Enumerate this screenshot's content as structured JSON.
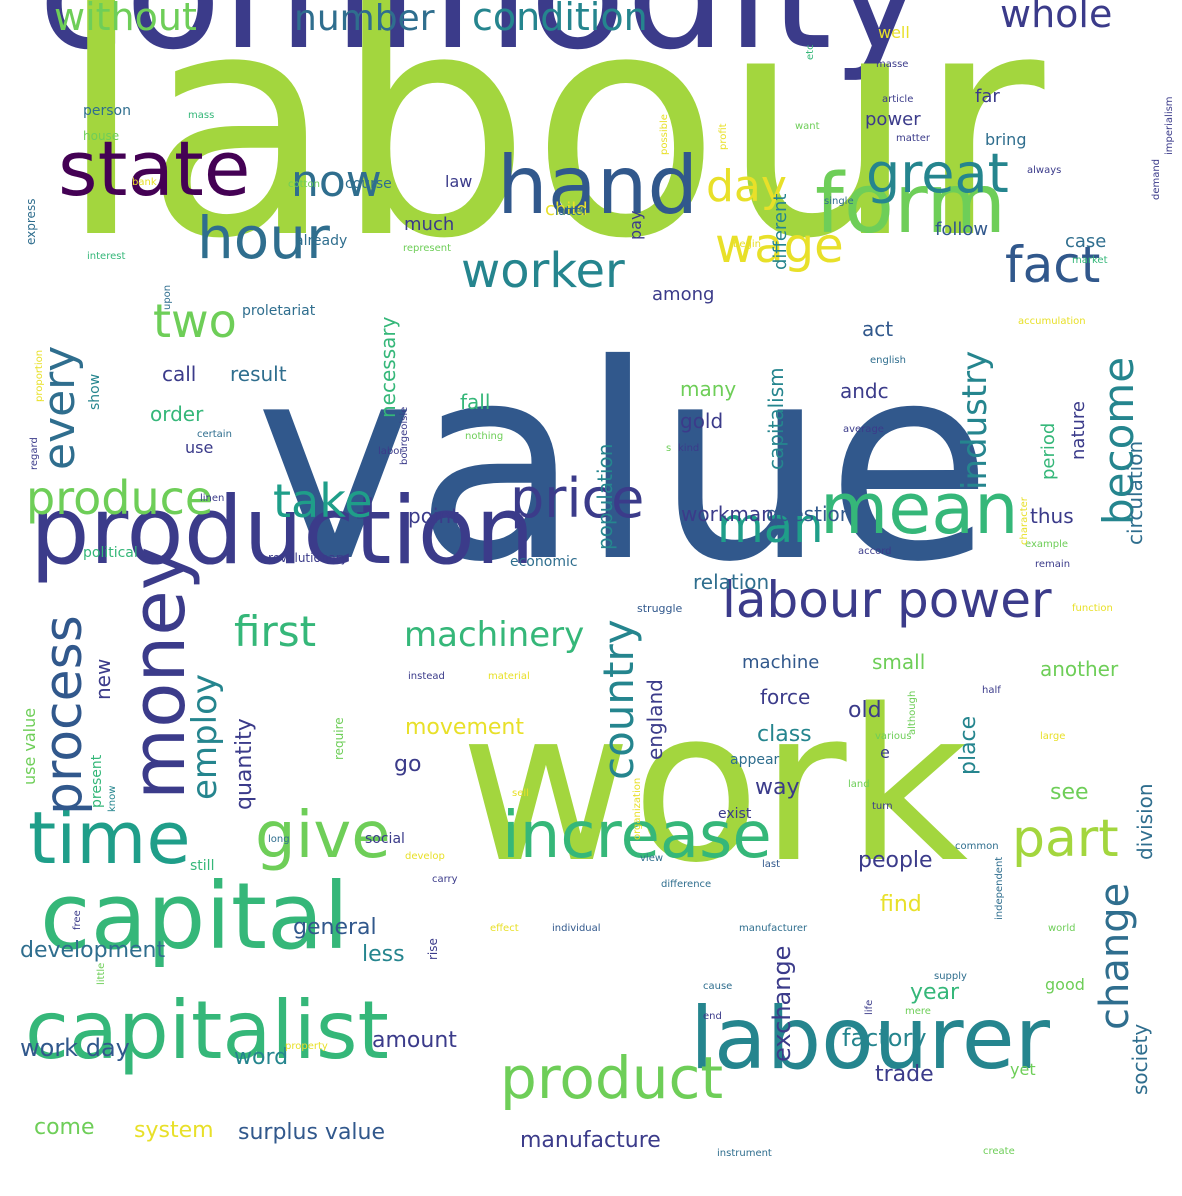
{
  "palette": {
    "deep_purple": "#440154",
    "indigo": "#3b3b8a",
    "blue": "#31588c",
    "steel": "#2f6e8e",
    "teal": "#25858e",
    "sea": "#1f9e89",
    "green": "#35b779",
    "lime": "#6ece58",
    "yellow_green": "#a3d63e",
    "yellow": "#e8e029"
  },
  "words": [
    {
      "text": "commodity",
      "color": "#3b3b8a",
      "weight": 100
    },
    {
      "text": "labour",
      "color": "#a3d63e",
      "weight": 96
    },
    {
      "text": "value",
      "color": "#31588c",
      "weight": 93
    },
    {
      "text": "work",
      "color": "#a3d63e",
      "weight": 88
    },
    {
      "text": "production",
      "color": "#3b3b8a",
      "weight": 60
    },
    {
      "text": "capital",
      "color": "#35b779",
      "weight": 58
    },
    {
      "text": "capitalist",
      "color": "#35b779",
      "weight": 52
    },
    {
      "text": "labourer",
      "color": "#25858e",
      "weight": 52
    },
    {
      "text": "state",
      "color": "#440154",
      "weight": 50
    },
    {
      "text": "hand",
      "color": "#31588c",
      "weight": 50
    },
    {
      "text": "form",
      "color": "#6ece58",
      "weight": 49
    },
    {
      "text": "mean",
      "color": "#35b779",
      "weight": 48
    },
    {
      "text": "time",
      "color": "#1f9e89",
      "weight": 47
    },
    {
      "text": "money",
      "color": "#3b3b8a",
      "weight": 45
    },
    {
      "text": "increase",
      "color": "#35b779",
      "weight": 44
    },
    {
      "text": "give",
      "color": "#6ece58",
      "weight": 44
    },
    {
      "text": "product",
      "color": "#6ece58",
      "weight": 42
    },
    {
      "text": "labour power",
      "color": "#3b3b8a",
      "weight": 40
    },
    {
      "text": "hour",
      "color": "#2f6e8e",
      "weight": 40
    },
    {
      "text": "great",
      "color": "#25858e",
      "weight": 36
    },
    {
      "text": "price",
      "color": "#3b3b8a",
      "weight": 36
    },
    {
      "text": "part",
      "color": "#a3d63e",
      "weight": 36
    },
    {
      "text": "fact",
      "color": "#31588c",
      "weight": 34
    },
    {
      "text": "process",
      "color": "#31588c",
      "weight": 34
    },
    {
      "text": "now",
      "color": "#2f6e8e",
      "weight": 32
    },
    {
      "text": "worker",
      "color": "#25858e",
      "weight": 32
    },
    {
      "text": "wage",
      "color": "#e8e029",
      "weight": 32
    },
    {
      "text": "man",
      "color": "#1f9e89",
      "weight": 32
    },
    {
      "text": "take",
      "color": "#1f9e89",
      "weight": 30
    },
    {
      "text": "produce",
      "color": "#6ece58",
      "weight": 30
    },
    {
      "text": "every",
      "color": "#2f6e8e",
      "weight": 30
    },
    {
      "text": "two",
      "color": "#6ece58",
      "weight": 30
    },
    {
      "text": "day",
      "color": "#e8e029",
      "weight": 30
    },
    {
      "text": "become",
      "color": "#25858e",
      "weight": 30
    },
    {
      "text": "change",
      "color": "#2f6e8e",
      "weight": 28
    },
    {
      "text": "first",
      "color": "#35b779",
      "weight": 28
    },
    {
      "text": "country",
      "color": "#25858e",
      "weight": 28
    },
    {
      "text": "whole",
      "color": "#3b3b8a",
      "weight": 28
    },
    {
      "text": "condition",
      "color": "#25858e",
      "weight": 28
    },
    {
      "text": "without",
      "color": "#6ece58",
      "weight": 28
    },
    {
      "text": "number",
      "color": "#2f6e8e",
      "weight": 26
    },
    {
      "text": "machinery",
      "color": "#35b779",
      "weight": 26
    },
    {
      "text": "industry",
      "color": "#25858e",
      "weight": 26
    },
    {
      "text": "employ",
      "color": "#25858e",
      "weight": 26
    },
    {
      "text": "surplus value",
      "color": "#31588c",
      "weight": 20
    },
    {
      "text": "manufacture",
      "color": "#3b3b8a",
      "weight": 20
    },
    {
      "text": "system",
      "color": "#e8e029",
      "weight": 20
    },
    {
      "text": "come",
      "color": "#6ece58",
      "weight": 20
    },
    {
      "text": "work day",
      "color": "#31588c",
      "weight": 20
    },
    {
      "text": "word",
      "color": "#25858e",
      "weight": 20
    },
    {
      "text": "amount",
      "color": "#3b3b8a",
      "weight": 20
    },
    {
      "text": "factory",
      "color": "#25858e",
      "weight": 22
    },
    {
      "text": "trade",
      "color": "#3b3b8a",
      "weight": 20
    },
    {
      "text": "year",
      "color": "#35b779",
      "weight": 20
    },
    {
      "text": "exchange",
      "color": "#3b3b8a",
      "weight": 20
    },
    {
      "text": "society",
      "color": "#2f6e8e",
      "weight": 18
    },
    {
      "text": "division",
      "color": "#2f6e8e",
      "weight": 18
    },
    {
      "text": "circulation",
      "color": "#2f6e8e",
      "weight": 18
    },
    {
      "text": "development",
      "color": "#2f6e8e",
      "weight": 18
    },
    {
      "text": "general",
      "color": "#31588c",
      "weight": 18
    },
    {
      "text": "less",
      "color": "#25858e",
      "weight": 18
    },
    {
      "text": "people",
      "color": "#3b3b8a",
      "weight": 18
    },
    {
      "text": "find",
      "color": "#e8e029",
      "weight": 18
    },
    {
      "text": "good",
      "color": "#6ece58",
      "weight": 14
    },
    {
      "text": "yet",
      "color": "#6ece58",
      "weight": 14
    },
    {
      "text": "movement",
      "color": "#e8e029",
      "weight": 18
    },
    {
      "text": "quantity",
      "color": "#3b3b8a",
      "weight": 18
    },
    {
      "text": "go",
      "color": "#3b3b8a",
      "weight": 18
    },
    {
      "text": "england",
      "color": "#3b3b8a",
      "weight": 18
    },
    {
      "text": "class",
      "color": "#25858e",
      "weight": 18
    },
    {
      "text": "way",
      "color": "#3b3b8a",
      "weight": 18
    },
    {
      "text": "place",
      "color": "#25858e",
      "weight": 18
    },
    {
      "text": "see",
      "color": "#6ece58",
      "weight": 18
    },
    {
      "text": "old",
      "color": "#3b3b8a",
      "weight": 18
    },
    {
      "text": "force",
      "color": "#3b3b8a",
      "weight": 16
    },
    {
      "text": "machine",
      "color": "#31588c",
      "weight": 16
    },
    {
      "text": "small",
      "color": "#6ece58",
      "weight": 16
    },
    {
      "text": "another",
      "color": "#6ece58",
      "weight": 16
    },
    {
      "text": "relation",
      "color": "#2f6e8e",
      "weight": 16
    },
    {
      "text": "new",
      "color": "#3b3b8a",
      "weight": 16
    },
    {
      "text": "workman",
      "color": "#3b3b8a",
      "weight": 16
    },
    {
      "text": "question",
      "color": "#31588c",
      "weight": 16
    },
    {
      "text": "thus",
      "color": "#3b3b8a",
      "weight": 16
    },
    {
      "text": "point",
      "color": "#3b3b8a",
      "weight": 16
    },
    {
      "text": "capitalism",
      "color": "#25858e",
      "weight": 16
    },
    {
      "text": "nature",
      "color": "#3b3b8a",
      "weight": 16
    },
    {
      "text": "period",
      "color": "#35b779",
      "weight": 16
    },
    {
      "text": "act",
      "color": "#31588c",
      "weight": 16
    },
    {
      "text": "andc",
      "color": "#3b3b8a",
      "weight": 16
    },
    {
      "text": "many",
      "color": "#6ece58",
      "weight": 16
    },
    {
      "text": "gold",
      "color": "#3b3b8a",
      "weight": 16
    },
    {
      "text": "fall",
      "color": "#35b779",
      "weight": 16
    },
    {
      "text": "population",
      "color": "#25858e",
      "weight": 16
    },
    {
      "text": "necessary",
      "color": "#35b779",
      "weight": 16
    },
    {
      "text": "order",
      "color": "#35b779",
      "weight": 16
    },
    {
      "text": "use",
      "color": "#3b3b8a",
      "weight": 14
    },
    {
      "text": "call",
      "color": "#3b3b8a",
      "weight": 16
    },
    {
      "text": "result",
      "color": "#2f6e8e",
      "weight": 16
    },
    {
      "text": "show",
      "color": "#25858e",
      "weight": 14
    },
    {
      "text": "law",
      "color": "#3b3b8a",
      "weight": 14
    },
    {
      "text": "much",
      "color": "#3b3b8a",
      "weight": 14
    },
    {
      "text": "child",
      "color": "#e8e029",
      "weight": 14
    },
    {
      "text": "pay",
      "color": "#3b3b8a",
      "weight": 14
    },
    {
      "text": "among",
      "color": "#3b3b8a",
      "weight": 14
    },
    {
      "text": "follow",
      "color": "#31588c",
      "weight": 14
    },
    {
      "text": "case",
      "color": "#2f6e8e",
      "weight": 14
    },
    {
      "text": "different",
      "color": "#25858e",
      "weight": 14
    },
    {
      "text": "power",
      "color": "#3b3b8a",
      "weight": 14
    },
    {
      "text": "far",
      "color": "#3b3b8a",
      "weight": 14
    },
    {
      "text": "bring",
      "color": "#2f6e8e",
      "weight": 12
    },
    {
      "text": "well",
      "color": "#e8e029",
      "weight": 14
    },
    {
      "text": "course",
      "color": "#2f6e8e",
      "weight": 12
    },
    {
      "text": "already",
      "color": "#2f6e8e",
      "weight": 12
    },
    {
      "text": "latter",
      "color": "#2f6e8e",
      "weight": 12
    },
    {
      "text": "person",
      "color": "#2f6e8e",
      "weight": 12
    },
    {
      "text": "proletariat",
      "color": "#2f6e8e",
      "weight": 12
    },
    {
      "text": "political",
      "color": "#35b779",
      "weight": 12
    },
    {
      "text": "revolutionary",
      "color": "#3b3b8a",
      "weight": 11
    },
    {
      "text": "economic",
      "color": "#2f6e8e",
      "weight": 12
    },
    {
      "text": "struggle",
      "color": "#31588c",
      "weight": 10
    },
    {
      "text": "use value",
      "color": "#6ece58",
      "weight": 14
    },
    {
      "text": "present",
      "color": "#35b779",
      "weight": 12
    },
    {
      "text": "know",
      "color": "#25858e",
      "weight": 10
    },
    {
      "text": "require",
      "color": "#6ece58",
      "weight": 12
    },
    {
      "text": "still",
      "color": "#35b779",
      "weight": 12
    },
    {
      "text": "social",
      "color": "#3b3b8a",
      "weight": 12
    },
    {
      "text": "develop",
      "color": "#e8e029",
      "weight": 10
    },
    {
      "text": "carry",
      "color": "#3b3b8a",
      "weight": 10
    },
    {
      "text": "view",
      "color": "#2f6e8e",
      "weight": 10
    },
    {
      "text": "long",
      "color": "#2f6e8e",
      "weight": 10
    },
    {
      "text": "free",
      "color": "#3b3b8a",
      "weight": 10
    },
    {
      "text": "little",
      "color": "#6ece58",
      "weight": 10
    },
    {
      "text": "rise",
      "color": "#3b3b8a",
      "weight": 12
    },
    {
      "text": "effect",
      "color": "#e8e029",
      "weight": 10
    },
    {
      "text": "individual",
      "color": "#31588c",
      "weight": 10
    },
    {
      "text": "difference",
      "color": "#2f6e8e",
      "weight": 10
    },
    {
      "text": "last",
      "color": "#31588c",
      "weight": 10
    },
    {
      "text": "manufacturer",
      "color": "#2f6e8e",
      "weight": 10
    },
    {
      "text": "exist",
      "color": "#3b3b8a",
      "weight": 12
    },
    {
      "text": "common",
      "color": "#2f6e8e",
      "weight": 10
    },
    {
      "text": "independent",
      "color": "#2f6e8e",
      "weight": 10
    },
    {
      "text": "world",
      "color": "#6ece58",
      "weight": 10
    },
    {
      "text": "supply",
      "color": "#2f6e8e",
      "weight": 10
    },
    {
      "text": "life",
      "color": "#3b3b8a",
      "weight": 10
    },
    {
      "text": "mere",
      "color": "#6ece58",
      "weight": 10
    },
    {
      "text": "cause",
      "color": "#2f6e8e",
      "weight": 10
    },
    {
      "text": "end",
      "color": "#3b3b8a",
      "weight": 10
    },
    {
      "text": "property",
      "color": "#e8e029",
      "weight": 10
    },
    {
      "text": "instrument",
      "color": "#2f6e8e",
      "weight": 10
    },
    {
      "text": "create",
      "color": "#6ece58",
      "weight": 10
    },
    {
      "text": "appear",
      "color": "#2f6e8e",
      "weight": 12
    },
    {
      "text": "e",
      "color": "#3b3b8a",
      "weight": 16
    },
    {
      "text": "various",
      "color": "#6ece58",
      "weight": 10
    },
    {
      "text": "although",
      "color": "#6ece58",
      "weight": 10
    },
    {
      "text": "land",
      "color": "#6ece58",
      "weight": 10
    },
    {
      "text": "turn",
      "color": "#3b3b8a",
      "weight": 10
    },
    {
      "text": "organization",
      "color": "#e8e029",
      "weight": 10
    },
    {
      "text": "sell",
      "color": "#e8e029",
      "weight": 10
    },
    {
      "text": "half",
      "color": "#3b3b8a",
      "weight": 10
    },
    {
      "text": "large",
      "color": "#e8e029",
      "weight": 10
    },
    {
      "text": "instead",
      "color": "#3b3b8a",
      "weight": 10
    },
    {
      "text": "material",
      "color": "#e8e029",
      "weight": 10
    },
    {
      "text": "function",
      "color": "#e8e029",
      "weight": 10
    },
    {
      "text": "remain",
      "color": "#3b3b8a",
      "weight": 10
    },
    {
      "text": "example",
      "color": "#6ece58",
      "weight": 10
    },
    {
      "text": "character",
      "color": "#e8e029",
      "weight": 10
    },
    {
      "text": "accord",
      "color": "#3b3b8a",
      "weight": 10
    },
    {
      "text": "average",
      "color": "#3b3b8a",
      "weight": 10
    },
    {
      "text": "english",
      "color": "#2f6e8e",
      "weight": 10
    },
    {
      "text": "accumulation",
      "color": "#e8e029",
      "weight": 10
    },
    {
      "text": "kind",
      "color": "#3b3b8a",
      "weight": 10
    },
    {
      "text": "s",
      "color": "#6ece58",
      "weight": 10
    },
    {
      "text": "nothing",
      "color": "#6ece58",
      "weight": 10
    },
    {
      "text": "labor",
      "color": "#3b3b8a",
      "weight": 10
    },
    {
      "text": "bourgeoisie",
      "color": "#3b3b8a",
      "weight": 10
    },
    {
      "text": "certain",
      "color": "#2f6e8e",
      "weight": 10
    },
    {
      "text": "linen",
      "color": "#3b3b8a",
      "weight": 10
    },
    {
      "text": "regard",
      "color": "#3b3b8a",
      "weight": 10
    },
    {
      "text": "proportion",
      "color": "#e8e029",
      "weight": 10
    },
    {
      "text": "upon",
      "color": "#2f6e8e",
      "weight": 10
    },
    {
      "text": "interest",
      "color": "#35b779",
      "weight": 10
    },
    {
      "text": "represent",
      "color": "#6ece58",
      "weight": 10
    },
    {
      "text": "begin",
      "color": "#e8e029",
      "weight": 10
    },
    {
      "text": "market",
      "color": "#35b779",
      "weight": 10
    },
    {
      "text": "express",
      "color": "#2f6e8e",
      "weight": 10
    },
    {
      "text": "bank",
      "color": "#e8e029",
      "weight": 10
    },
    {
      "text": "cotton",
      "color": "#6ece58",
      "weight": 10
    },
    {
      "text": "house",
      "color": "#6ece58",
      "weight": 10
    },
    {
      "text": "mass",
      "color": "#35b779",
      "weight": 10
    },
    {
      "text": "possible",
      "color": "#e8e029",
      "weight": 10
    },
    {
      "text": "profit",
      "color": "#e8e029",
      "weight": 10
    },
    {
      "text": "want",
      "color": "#6ece58",
      "weight": 10
    },
    {
      "text": "etc",
      "color": "#35b779",
      "weight": 10
    },
    {
      "text": "masse",
      "color": "#3b3b8a",
      "weight": 10
    },
    {
      "text": "article",
      "color": "#3b3b8a",
      "weight": 10
    },
    {
      "text": "matter",
      "color": "#3b3b8a",
      "weight": 10
    },
    {
      "text": "always",
      "color": "#3b3b8a",
      "weight": 10
    },
    {
      "text": "single",
      "color": "#2f6e8e",
      "weight": 10
    },
    {
      "text": "demand",
      "color": "#3b3b8a",
      "weight": 10
    },
    {
      "text": "imperialism",
      "color": "#3b3b8a",
      "weight": 10
    }
  ]
}
